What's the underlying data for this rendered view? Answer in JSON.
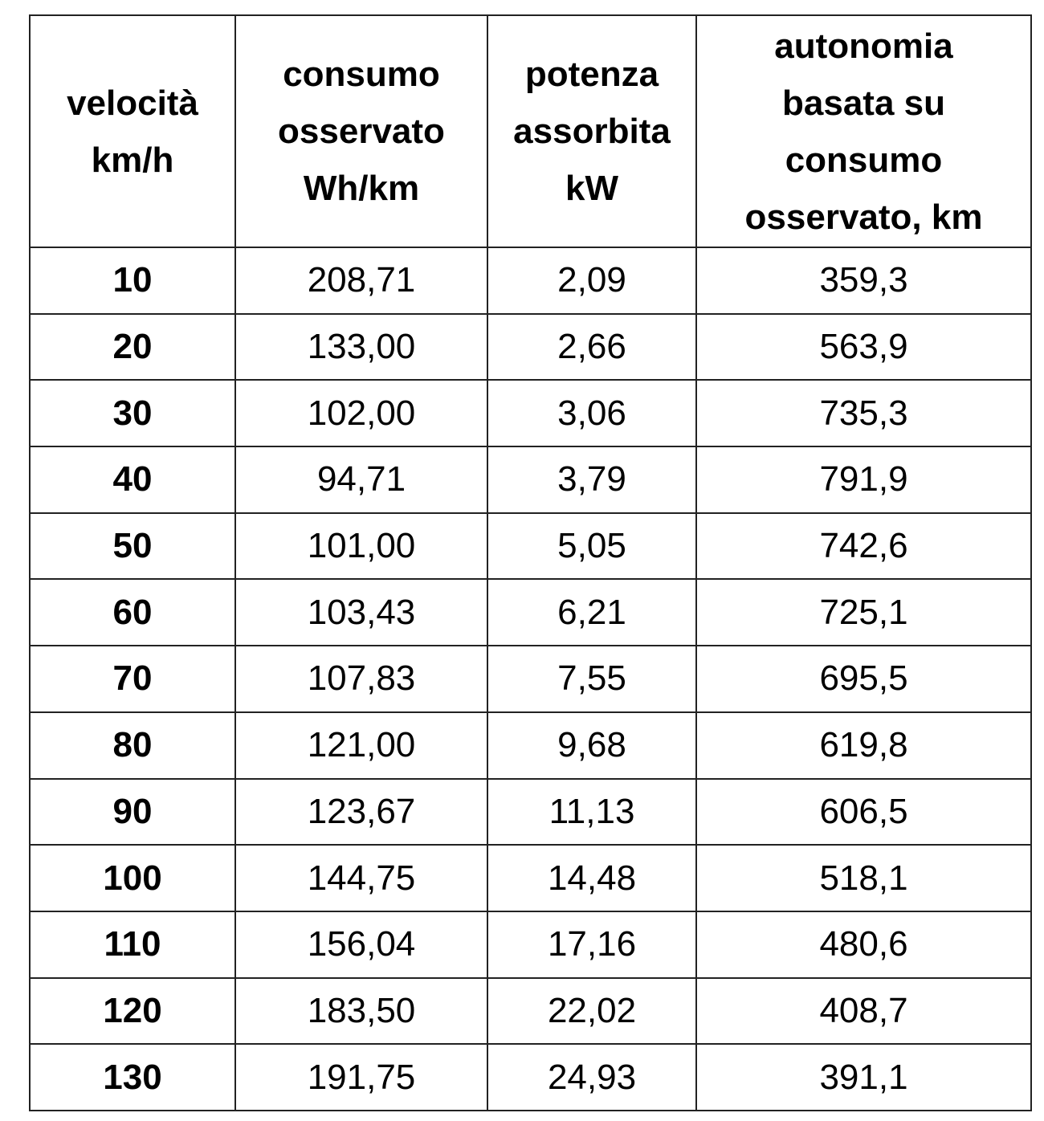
{
  "table": {
    "headers": [
      [
        "velocità",
        "km/h"
      ],
      [
        "consumo",
        "osservato",
        "Wh/km"
      ],
      [
        "potenza",
        "assorbita",
        "kW"
      ],
      [
        "autonomia",
        "basata su",
        "consumo",
        "osservato, km"
      ]
    ],
    "rows": [
      [
        "10",
        "208,71",
        "2,09",
        "359,3"
      ],
      [
        "20",
        "133,00",
        "2,66",
        "563,9"
      ],
      [
        "30",
        "102,00",
        "3,06",
        "735,3"
      ],
      [
        "40",
        "94,71",
        "3,79",
        "791,9"
      ],
      [
        "50",
        "101,00",
        "5,05",
        "742,6"
      ],
      [
        "60",
        "103,43",
        "6,21",
        "725,1"
      ],
      [
        "70",
        "107,83",
        "7,55",
        "695,5"
      ],
      [
        "80",
        "121,00",
        "9,68",
        "619,8"
      ],
      [
        "90",
        "123,67",
        "11,13",
        "606,5"
      ],
      [
        "100",
        "144,75",
        "14,48",
        "518,1"
      ],
      [
        "110",
        "156,04",
        "17,16",
        "480,6"
      ],
      [
        "120",
        "183,50",
        "22,02",
        "408,7"
      ],
      [
        "130",
        "191,75",
        "24,93",
        "391,1"
      ]
    ]
  }
}
